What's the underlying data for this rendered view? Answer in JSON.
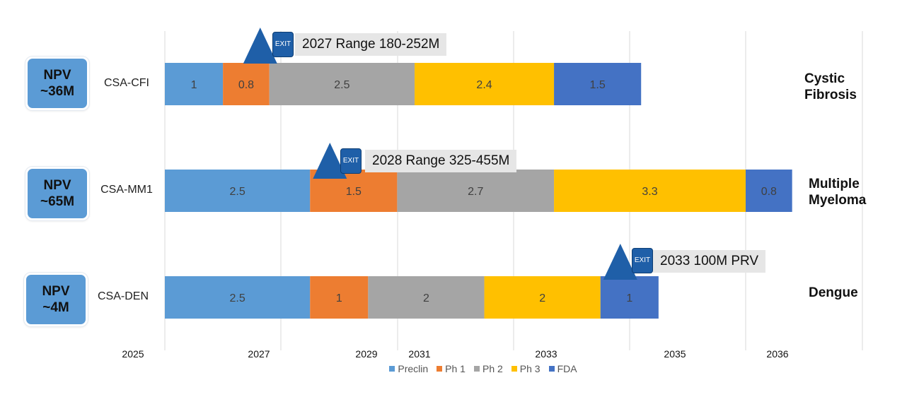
{
  "chart_data": {
    "type": "bar",
    "orientation": "horizontal",
    "stacked": true,
    "start_year": 2025,
    "x_tick_labels": [
      "2025",
      "2027",
      "2029",
      "2031",
      "2033",
      "2035",
      "2036"
    ],
    "stage_names": [
      "Preclin",
      "Ph 1",
      "Ph 2",
      "Ph 3",
      "FDA"
    ],
    "stage_colors": [
      "#5b9bd5",
      "#ed7d31",
      "#a5a5a5",
      "#ffc000",
      "#4472c4"
    ],
    "legend_position": "bottom",
    "programs": [
      {
        "name": "CSA-CFI",
        "npv": [
          "NPV",
          "~36M"
        ],
        "disease": [
          "Cystic",
          "Fibrosis"
        ],
        "durations": [
          1,
          0.8,
          2.5,
          2.4,
          1.5
        ],
        "exit_label": "EXIT",
        "exit_text": "2027 Range 180-252M",
        "exit_year_offset": 1.8
      },
      {
        "name": "CSA-MM1",
        "npv": [
          "NPV",
          "~65M"
        ],
        "disease": [
          "Multiple",
          "Myeloma"
        ],
        "durations": [
          2.5,
          1.5,
          2.7,
          3.3,
          0.8
        ],
        "exit_label": "EXIT",
        "exit_text": "2028 Range 325-455M",
        "exit_year_offset": 3
      },
      {
        "name": "CSA-DEN",
        "npv": [
          "NPV",
          "~4M"
        ],
        "disease": [
          "Dengue"
        ],
        "durations": [
          2.5,
          1,
          2,
          2,
          1
        ],
        "exit_label": "EXIT",
        "exit_text": "2033 100M PRV",
        "exit_year_offset": 8
      }
    ]
  }
}
